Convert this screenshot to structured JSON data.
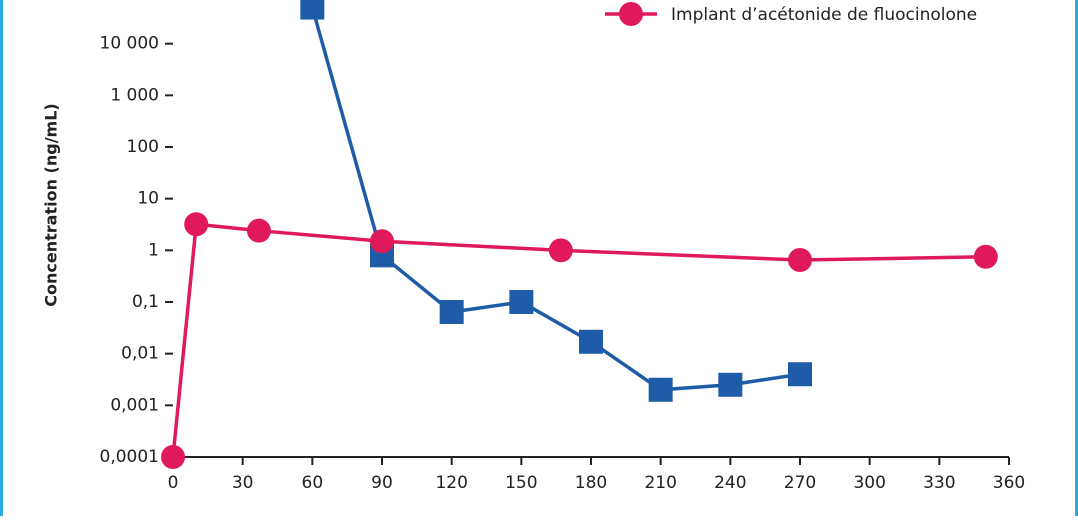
{
  "chart_data": {
    "type": "line",
    "y_label": "Concentration (ng/mL)",
    "log_scale": "y",
    "xlim": [
      0,
      360
    ],
    "xticks": [
      0,
      30,
      60,
      90,
      120,
      150,
      180,
      210,
      240,
      270,
      300,
      330,
      360
    ],
    "ylim": [
      0.0001,
      70000
    ],
    "yticks": [
      {
        "value": 0.0001,
        "label": "0,0001"
      },
      {
        "value": 0.001,
        "label": "0,001"
      },
      {
        "value": 0.01,
        "label": "0,01"
      },
      {
        "value": 0.1,
        "label": "0,1"
      },
      1,
      10,
      100,
      {
        "value": 1000,
        "label": "1 000"
      },
      {
        "value": 10000,
        "label": "10 000"
      }
    ],
    "series": [
      {
        "color": "#1f5ca8",
        "marker": "square",
        "x": [
          60,
          90,
          120,
          150,
          180,
          210,
          240,
          270
        ],
        "values": [
          50000,
          0.8,
          0.064,
          0.1,
          0.017,
          0.002,
          0.0025,
          0.004
        ]
      },
      {
        "name": "Implant d’acétonide de fluocinolone",
        "color": "#e0195a",
        "marker": "circle",
        "x": [
          0,
          10,
          37,
          90,
          167,
          270,
          350
        ],
        "values": [
          0.0001,
          3.2,
          2.4,
          1.5,
          1.0,
          0.65,
          0.75
        ]
      }
    ]
  }
}
